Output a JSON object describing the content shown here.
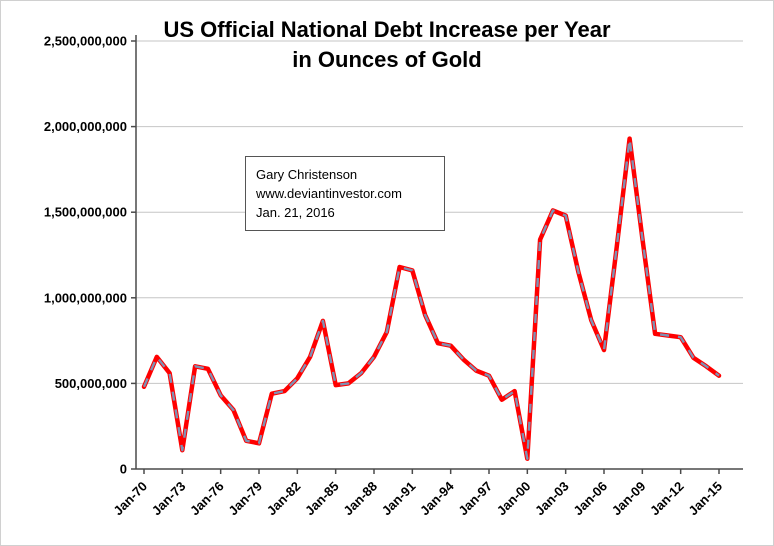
{
  "chart_data": {
    "type": "line",
    "title": "US Official National Debt Increase per Year in Ounces of Gold",
    "title_lines": [
      "US Official National Debt Increase per Year",
      "in Ounces of Gold"
    ],
    "xlabel": "",
    "ylabel": "",
    "ylim": [
      0,
      2500000000
    ],
    "grid": true,
    "legend": "none",
    "x": [
      1970,
      1971,
      1972,
      1973,
      1974,
      1975,
      1976,
      1977,
      1978,
      1979,
      1980,
      1981,
      1982,
      1983,
      1984,
      1985,
      1986,
      1987,
      1988,
      1989,
      1990,
      1991,
      1992,
      1993,
      1994,
      1995,
      1996,
      1997,
      1998,
      1999,
      2000,
      2001,
      2002,
      2003,
      2004,
      2005,
      2006,
      2007,
      2008,
      2009,
      2010,
      2011,
      2012,
      2013,
      2014,
      2015
    ],
    "x_tick_labels": [
      "Jan-70",
      "Jan-73",
      "Jan-76",
      "Jan-79",
      "Jan-82",
      "Jan-85",
      "Jan-88",
      "Jan-91",
      "Jan-94",
      "Jan-97",
      "Jan-00",
      "Jan-03",
      "Jan-06",
      "Jan-09",
      "Jan-12",
      "Jan-15"
    ],
    "x_tick_every_years": 3,
    "y_ticks": [
      0,
      500000000,
      1000000000,
      1500000000,
      2000000000,
      2500000000
    ],
    "y_tick_labels": [
      "0",
      "500,000,000",
      "1,000,000,000",
      "1,500,000,000",
      "2,000,000,000",
      "2,500,000,000"
    ],
    "series": [
      {
        "name": "US national debt increase per year in ounces of gold",
        "color": "#ff0000",
        "values": [
          480000000,
          655000000,
          560000000,
          110000000,
          600000000,
          585000000,
          430000000,
          345000000,
          165000000,
          150000000,
          440000000,
          455000000,
          530000000,
          655000000,
          865000000,
          490000000,
          500000000,
          560000000,
          655000000,
          800000000,
          1180000000,
          1160000000,
          900000000,
          735000000,
          720000000,
          640000000,
          575000000,
          545000000,
          405000000,
          455000000,
          60000000,
          1340000000,
          1510000000,
          1480000000,
          1150000000,
          870000000,
          695000000,
          1300000000,
          1930000000,
          1350000000,
          790000000,
          780000000,
          770000000,
          650000000,
          600000000,
          545000000
        ]
      }
    ],
    "overlay_dashed_line": {
      "color": "#7f91b3",
      "dash": "9 9",
      "follows_series": 0
    },
    "colors": {
      "grid": "#c6c6c6",
      "axis": "#4a4a4a",
      "background": "#ffffff"
    },
    "annotation": {
      "lines": [
        "Gary Christenson",
        "www.deviantinvestor.com",
        "Jan. 21, 2016"
      ]
    }
  }
}
